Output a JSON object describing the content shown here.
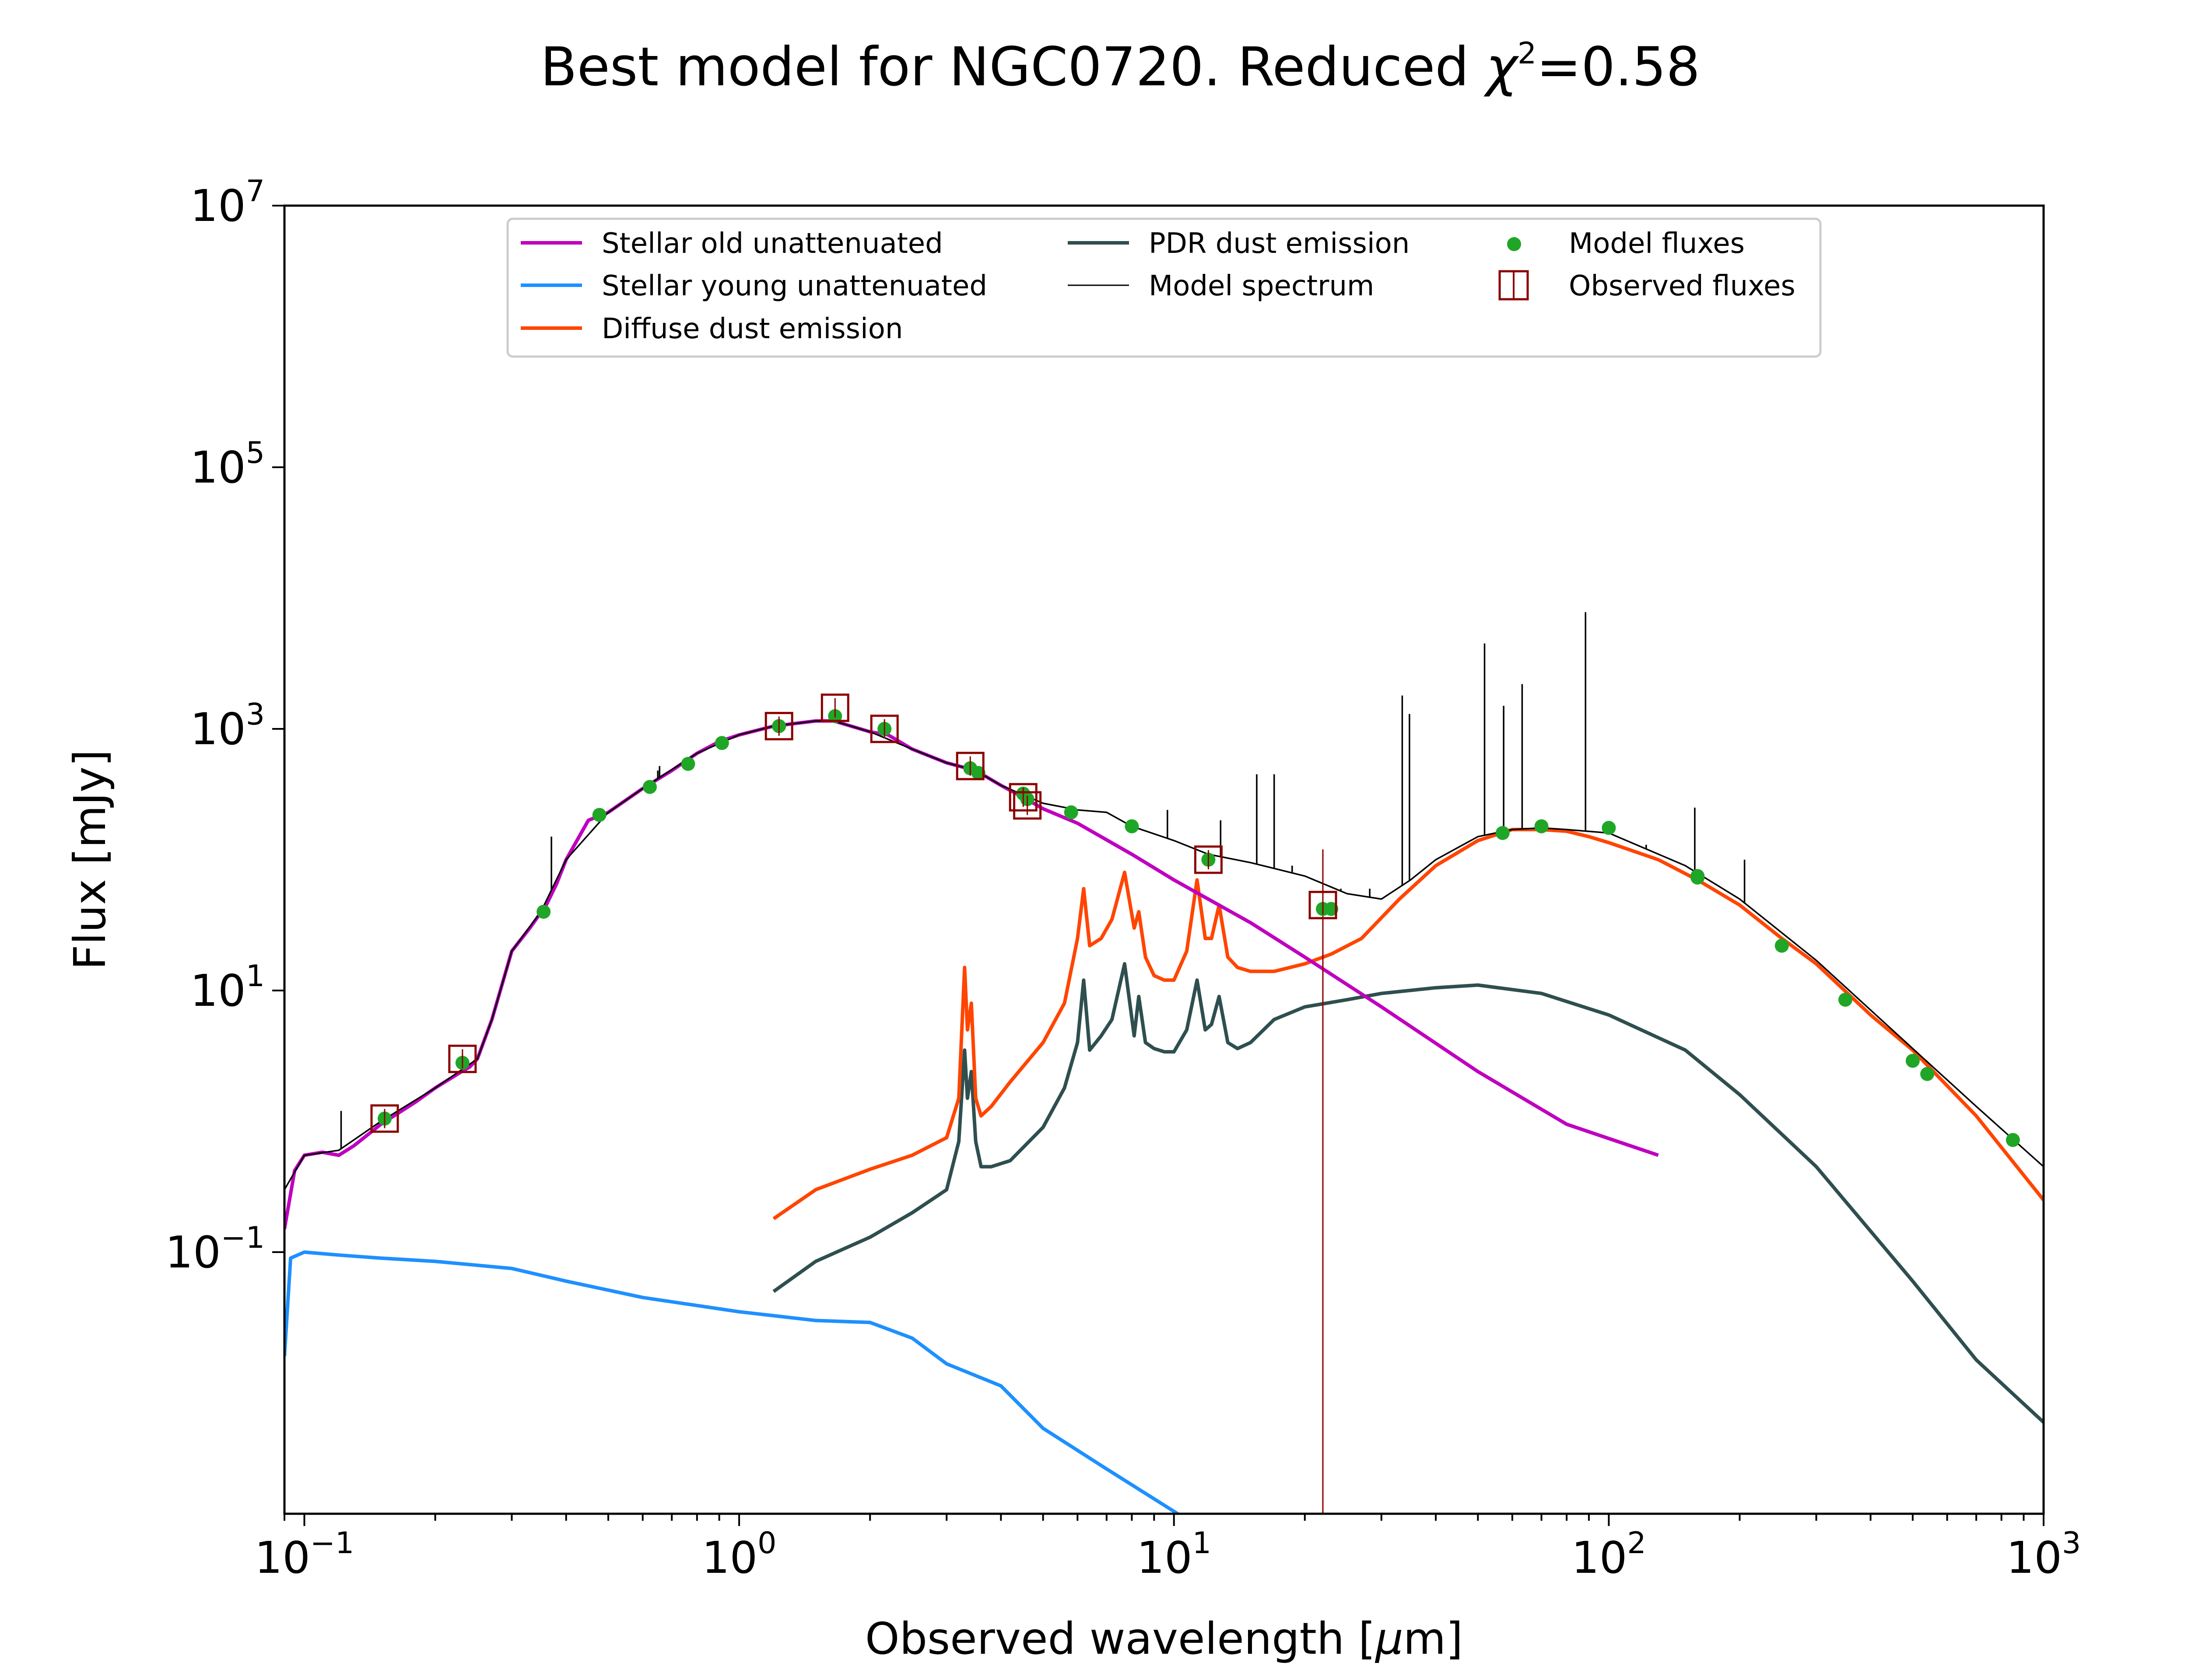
{
  "chart_data": {
    "type": "line",
    "title": "Best model for NGC0720. Reduced χ²=0.58",
    "title_main": "Best model for NGC0720. Reduced ",
    "title_chi": "χ",
    "title_exp": "2",
    "title_val": "=0.58",
    "xlabel": "Observed wavelength [μm]",
    "xlabel_pre": "Observed wavelength [",
    "xlabel_mu": "μ",
    "xlabel_post": "m]",
    "ylabel": "Flux [mJy]",
    "xscale": "log",
    "yscale": "log",
    "xlim": [
      0.09,
      1000
    ],
    "ylim": [
      0.001,
      10000000
    ],
    "legend_position": "top-center",
    "x_ticks": [
      {
        "value": 0.1,
        "base": "10",
        "exp": "−1"
      },
      {
        "value": 1,
        "base": "10",
        "exp": "0"
      },
      {
        "value": 10,
        "base": "10",
        "exp": "1"
      },
      {
        "value": 100,
        "base": "10",
        "exp": "2"
      },
      {
        "value": 1000,
        "base": "10",
        "exp": "3"
      }
    ],
    "y_ticks": [
      {
        "value": 0.1,
        "base": "10",
        "exp": "−1"
      },
      {
        "value": 10,
        "base": "10",
        "exp": "1"
      },
      {
        "value": 1000,
        "base": "10",
        "exp": "3"
      },
      {
        "value": 100000,
        "base": "10",
        "exp": "5"
      },
      {
        "value": 10000000,
        "base": "10",
        "exp": "7"
      }
    ],
    "series": [
      {
        "name": "Stellar old unattenuated",
        "color": "#bf00bf",
        "kind": "line",
        "x": [
          0.09,
          0.095,
          0.1,
          0.11,
          0.12,
          0.13,
          0.15,
          0.18,
          0.2,
          0.23,
          0.24,
          0.25,
          0.27,
          0.3,
          0.33,
          0.36,
          0.38,
          0.4,
          0.45,
          0.5,
          0.6,
          0.7,
          0.8,
          0.9,
          1.0,
          1.2,
          1.5,
          1.65,
          2.0,
          2.2,
          2.5,
          3.0,
          3.5,
          4.0,
          4.5,
          5.0,
          6.0,
          8.0,
          10,
          15,
          20,
          30,
          50,
          80,
          130
        ],
        "y": [
          0.15,
          0.42,
          0.55,
          0.58,
          0.55,
          0.65,
          0.95,
          1.4,
          1.8,
          2.4,
          2.6,
          3.0,
          6.0,
          20,
          30,
          45,
          65,
          100,
          200,
          230,
          350,
          480,
          650,
          800,
          900,
          1050,
          1150,
          1150,
          950,
          900,
          700,
          550,
          480,
          370,
          300,
          245,
          190,
          110,
          70,
          33,
          18,
          7.5,
          2.4,
          0.95,
          0.55
        ]
      },
      {
        "name": "Stellar young unattenuated",
        "color": "#1e90ff",
        "kind": "line",
        "x": [
          0.09,
          0.093,
          0.1,
          0.12,
          0.15,
          0.2,
          0.3,
          0.4,
          0.6,
          1.0,
          1.5,
          2.0,
          2.5,
          3.0,
          4.0,
          5.0,
          7.0,
          10.2
        ],
        "y": [
          0.016,
          0.09,
          0.1,
          0.095,
          0.09,
          0.085,
          0.075,
          0.06,
          0.045,
          0.035,
          0.03,
          0.029,
          0.022,
          0.014,
          0.0095,
          0.0045,
          0.0022,
          0.001
        ]
      },
      {
        "name": "Diffuse dust emission",
        "color": "#ff4500",
        "kind": "line",
        "x": [
          1.2,
          1.5,
          2.0,
          2.5,
          3.0,
          3.2,
          3.3,
          3.35,
          3.42,
          3.5,
          3.6,
          3.8,
          4.2,
          5.0,
          5.6,
          6.0,
          6.2,
          6.4,
          6.8,
          7.2,
          7.7,
          8.1,
          8.3,
          8.6,
          9.0,
          9.5,
          10.0,
          10.7,
          11.3,
          11.8,
          12.2,
          12.7,
          13.3,
          14.0,
          15,
          17,
          20,
          23,
          27,
          33,
          40,
          50,
          60,
          70,
          80,
          90,
          100,
          130,
          160,
          200,
          250,
          300,
          400,
          500,
          700,
          1000
        ],
        "y": [
          0.18,
          0.3,
          0.43,
          0.55,
          0.75,
          1.5,
          15,
          5,
          8,
          1.5,
          1.1,
          1.3,
          2.0,
          4.0,
          8.0,
          25,
          60,
          22,
          25,
          35,
          80,
          30,
          40,
          18,
          13,
          12,
          12,
          20,
          70,
          25,
          25,
          45,
          18,
          15,
          14,
          14,
          16,
          19,
          25,
          50,
          90,
          140,
          170,
          170,
          165,
          150,
          135,
          100,
          70,
          45,
          25,
          16,
          6.5,
          3.5,
          1.1,
          0.25
        ]
      },
      {
        "name": "PDR dust emission",
        "color": "#2f4f4f",
        "kind": "line",
        "x": [
          1.2,
          1.5,
          2.0,
          2.5,
          3.0,
          3.2,
          3.3,
          3.35,
          3.42,
          3.5,
          3.6,
          3.8,
          4.2,
          5.0,
          5.6,
          6.0,
          6.2,
          6.4,
          6.8,
          7.2,
          7.7,
          8.1,
          8.3,
          8.6,
          9.0,
          9.5,
          10.0,
          10.7,
          11.3,
          11.8,
          12.2,
          12.7,
          13.3,
          14.0,
          15,
          17,
          20,
          25,
          30,
          40,
          50,
          70,
          100,
          150,
          200,
          300,
          500,
          700,
          1000
        ],
        "y": [
          0.05,
          0.085,
          0.13,
          0.2,
          0.3,
          0.7,
          3.5,
          1.5,
          2.4,
          0.7,
          0.45,
          0.45,
          0.5,
          0.9,
          1.8,
          4.0,
          12,
          3.5,
          4.5,
          6.0,
          16,
          4.5,
          9.0,
          4.0,
          3.6,
          3.4,
          3.4,
          5.0,
          12,
          5.0,
          5.5,
          9.0,
          4.0,
          3.6,
          4.0,
          6.0,
          7.5,
          8.5,
          9.5,
          10.5,
          11,
          9.5,
          6.5,
          3.5,
          1.6,
          0.45,
          0.06,
          0.015,
          0.005
        ]
      },
      {
        "name": "Model spectrum",
        "color": "#000000",
        "kind": "line",
        "x": [
          0.09,
          0.1,
          0.12,
          0.15,
          0.2,
          0.25,
          0.27,
          0.3,
          0.35,
          0.4,
          0.5,
          0.6,
          0.8,
          1.0,
          1.2,
          1.5,
          1.65,
          2.0,
          2.5,
          3.0,
          3.5,
          4.0,
          5.0,
          6.0,
          7.0,
          8.0,
          10,
          12,
          15,
          20,
          25,
          30,
          35,
          40,
          50,
          60,
          70,
          80,
          100,
          150,
          200,
          300,
          500,
          700,
          1000
        ],
        "y": [
          0.3,
          0.55,
          0.6,
          1.0,
          1.8,
          3.0,
          6.0,
          20,
          40,
          100,
          230,
          350,
          650,
          900,
          1050,
          1150,
          1150,
          950,
          700,
          550,
          480,
          370,
          270,
          240,
          230,
          180,
          140,
          110,
          95,
          75,
          55,
          50,
          70,
          100,
          150,
          170,
          175,
          170,
          160,
          90,
          50,
          17,
          3.6,
          1.3,
          0.45
        ]
      },
      {
        "name": "Model spectrum lines",
        "kind": "lines",
        "color": "#000000",
        "x": [
          0.1215,
          0.37,
          0.65,
          0.656,
          9.66,
          12.8,
          15.5,
          17.0,
          18.7,
          24.2,
          28.2,
          33.5,
          34.8,
          51.8,
          57.3,
          63.2,
          88.4,
          121.9,
          145.5,
          157.7,
          205.2
        ],
        "y": [
          1.2,
          150,
          480,
          520,
          240,
          200,
          450,
          450,
          90,
          60,
          60,
          1800,
          1300,
          4500,
          1500,
          2200,
          7800,
          130,
          95,
          250,
          100
        ]
      },
      {
        "name": "Observed fluxes",
        "color": "#8b0000",
        "kind": "boxes",
        "x": [
          0.153,
          0.231,
          1.235,
          1.662,
          2.159,
          3.4,
          4.5,
          4.6,
          12.0,
          22.0
        ],
        "y": [
          1.05,
          3.0,
          1050,
          1450,
          1000,
          520,
          300,
          260,
          100,
          45
        ],
        "errbar": {
          "x": 22.0,
          "low": 0.001,
          "high": 120
        }
      },
      {
        "name": "Model fluxes",
        "color": "#1fa626",
        "kind": "points",
        "x": [
          0.153,
          0.231,
          0.355,
          0.477,
          0.623,
          0.763,
          0.913,
          1.235,
          1.662,
          2.159,
          3.4,
          3.55,
          4.5,
          4.6,
          5.8,
          8.0,
          12.0,
          22.0,
          23.0,
          57.0,
          70.0,
          100.0,
          160.0,
          160.0,
          250.0,
          350.0,
          500.0,
          540.0,
          850.0
        ],
        "y": [
          1.05,
          2.8,
          40,
          220,
          360,
          540,
          780,
          1050,
          1250,
          1000,
          500,
          460,
          320,
          290,
          230,
          180,
          100,
          42,
          42,
          160,
          180,
          175,
          75,
          73,
          22,
          8.5,
          2.9,
          2.3,
          0.72
        ]
      }
    ],
    "legend": [
      {
        "label": "Stellar old unattenuated",
        "color": "#bf00bf",
        "kind": "line"
      },
      {
        "label": "Stellar young unattenuated",
        "color": "#1e90ff",
        "kind": "line"
      },
      {
        "label": "Diffuse dust emission",
        "color": "#ff4500",
        "kind": "line"
      },
      {
        "label": "PDR dust emission",
        "color": "#2f4f4f",
        "kind": "line"
      },
      {
        "label": "Model spectrum",
        "color": "#000000",
        "kind": "thinline"
      },
      {
        "label": "Model fluxes",
        "color": "#1fa626",
        "kind": "point"
      },
      {
        "label": "Observed fluxes",
        "color": "#8b0000",
        "kind": "box"
      }
    ]
  }
}
